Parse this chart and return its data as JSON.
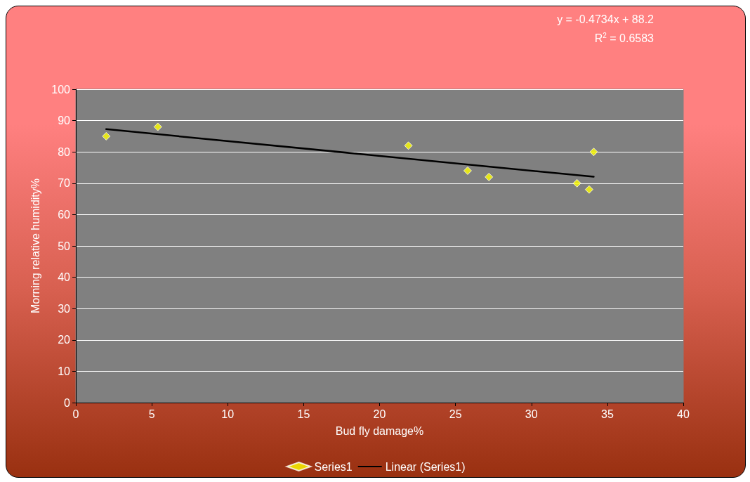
{
  "chart_data": {
    "type": "scatter",
    "xlabel": "Bud fly damage%",
    "ylabel": "Morning relative humidity%",
    "annotations": [
      "y = -0.4734x + 88.2",
      "R$^{2}$ = 0.6583"
    ],
    "series": [
      {
        "name": "Series1",
        "color": "#ffff00",
        "x": [
          2,
          5.4,
          21.9,
          25.8,
          27.2,
          33.0,
          33.8,
          34.1
        ],
        "values": [
          85,
          88,
          82,
          74,
          72,
          70,
          68,
          80
        ]
      },
      {
        "name": "Linear (Series1)",
        "type": "line",
        "marker": "none",
        "color": "#000000",
        "x": [
          2,
          34.1
        ],
        "values": [
          87.25,
          72.06
        ]
      }
    ],
    "xlim": [
      0,
      40
    ],
    "xticks": [
      0,
      5,
      10,
      15,
      20,
      25,
      30,
      35,
      40
    ],
    "ylim": [
      0,
      100
    ],
    "yticks": [
      0,
      10,
      20,
      30,
      40,
      50,
      60,
      70,
      80,
      90,
      100
    ],
    "grid": "y",
    "legend": "bottom",
    "marker": "diamond"
  }
}
